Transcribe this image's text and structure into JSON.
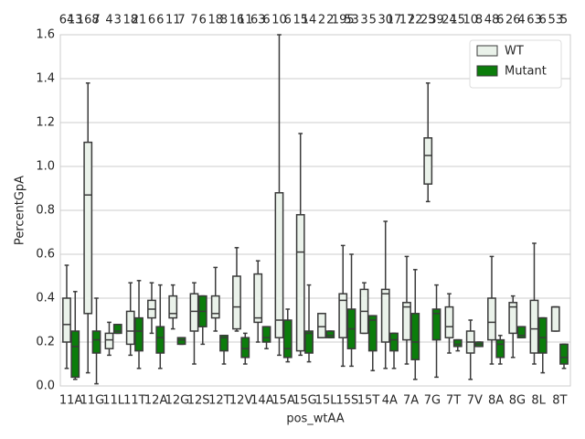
{
  "chart_data": {
    "type": "box",
    "xlabel": "pos_wtAA",
    "ylabel": "PercentGpA",
    "categories": [
      "11A",
      "11G",
      "11L",
      "11T",
      "12A",
      "12G",
      "12S",
      "12T",
      "12V",
      "14A",
      "15A",
      "15G",
      "15L",
      "15S",
      "15T",
      "4A",
      "7A",
      "7G",
      "7T",
      "7V",
      "8A",
      "8G",
      "8L",
      "8T"
    ],
    "ylim": [
      0,
      1.6
    ],
    "yticks": [
      {
        "value": 0,
        "label": "0.0"
      },
      {
        "value": 0.2,
        "label": "0.2"
      },
      {
        "value": 0.4,
        "label": "0.4"
      },
      {
        "value": 0.6,
        "label": "0.6"
      },
      {
        "value": 0.8,
        "label": "0.8"
      },
      {
        "value": 1,
        "label": "1.0"
      },
      {
        "value": 1.2,
        "label": "1.2"
      },
      {
        "value": 1.4,
        "label": "1.4"
      },
      {
        "value": 1.6,
        "label": "1.6"
      }
    ],
    "grid": true,
    "legend": "upper right",
    "series": [
      {
        "name": "WT",
        "color": "#eaf2ea",
        "stats": [
          [
            0.08,
            0.2,
            0.28,
            0.4,
            0.55
          ],
          [
            0.06,
            0.33,
            0.87,
            1.11,
            1.38
          ],
          [
            0.14,
            0.17,
            0.21,
            0.24,
            0.29
          ],
          [
            0.14,
            0.19,
            0.25,
            0.34,
            0.47
          ],
          [
            0.24,
            0.31,
            0.35,
            0.39,
            0.47
          ],
          [
            0.26,
            0.31,
            0.33,
            0.41,
            0.46
          ],
          [
            0.1,
            0.25,
            0.34,
            0.42,
            0.47
          ],
          [
            0.25,
            0.31,
            0.33,
            0.41,
            0.54
          ],
          [
            0.25,
            0.26,
            0.36,
            0.5,
            0.63
          ],
          [
            0.2,
            0.29,
            0.31,
            0.51,
            0.57
          ],
          [
            0.14,
            0.22,
            0.3,
            0.88,
            1.6
          ],
          [
            0.14,
            0.16,
            0.61,
            0.78,
            1.15
          ],
          [
            0.22,
            0.22,
            0.27,
            0.33,
            0.33
          ],
          [
            0.09,
            0.22,
            0.39,
            0.42,
            0.64
          ],
          [
            0.24,
            0.24,
            0.34,
            0.44,
            0.47
          ],
          [
            0.08,
            0.2,
            0.42,
            0.44,
            0.75
          ],
          [
            0.1,
            0.21,
            0.36,
            0.38,
            0.59
          ],
          [
            0.84,
            0.92,
            1.05,
            1.13,
            1.38
          ],
          [
            0.15,
            0.22,
            0.27,
            0.36,
            0.42
          ],
          [
            0.03,
            0.15,
            0.2,
            0.25,
            0.3
          ],
          [
            0.1,
            0.21,
            0.29,
            0.4,
            0.59
          ],
          [
            0.13,
            0.24,
            0.36,
            0.38,
            0.41
          ],
          [
            0.1,
            0.15,
            0.26,
            0.39,
            0.65
          ],
          [
            0.25,
            0.25,
            0.36,
            0.36,
            0.36
          ]
        ],
        "counts": [
          64,
          168,
          4,
          18,
          6,
          11,
          7,
          18,
          16,
          63,
          10,
          15,
          2,
          195,
          3,
          30,
          17,
          25,
          24,
          10,
          48,
          26,
          63,
          53
        ]
      },
      {
        "name": "Mutant",
        "color": "#0b7d0b",
        "stats": [
          [
            0.03,
            0.04,
            0.18,
            0.25,
            0.43
          ],
          [
            0.01,
            0.15,
            0.21,
            0.25,
            0.4
          ],
          [
            0.24,
            0.24,
            0.25,
            0.28,
            0.28
          ],
          [
            0.08,
            0.16,
            0.25,
            0.31,
            0.48
          ],
          [
            0.08,
            0.15,
            0.22,
            0.27,
            0.46
          ],
          [
            0.19,
            0.19,
            0.21,
            0.22,
            0.22
          ],
          [
            0.19,
            0.27,
            0.34,
            0.41,
            0.41
          ],
          [
            0.1,
            0.16,
            0.22,
            0.23,
            0.23
          ],
          [
            0.1,
            0.13,
            0.17,
            0.22,
            0.24
          ],
          [
            0.17,
            0.2,
            0.22,
            0.27,
            0.27
          ],
          [
            0.11,
            0.13,
            0.17,
            0.3,
            0.35
          ],
          [
            0.11,
            0.15,
            0.24,
            0.25,
            0.46
          ],
          [
            0.22,
            0.22,
            0.23,
            0.25,
            0.25
          ],
          [
            0.09,
            0.17,
            0.26,
            0.35,
            0.6
          ],
          [
            0.07,
            0.16,
            0.3,
            0.32,
            0.32
          ],
          [
            0.08,
            0.16,
            0.21,
            0.24,
            0.24
          ],
          [
            0.03,
            0.12,
            0.2,
            0.33,
            0.53
          ],
          [
            0.04,
            0.21,
            0.33,
            0.35,
            0.46
          ],
          [
            0.16,
            0.18,
            0.19,
            0.21,
            0.21
          ],
          [
            0.18,
            0.18,
            0.19,
            0.2,
            0.2
          ],
          [
            0.1,
            0.13,
            0.19,
            0.21,
            0.23
          ],
          [
            0.22,
            0.22,
            0.23,
            0.27,
            0.27
          ],
          [
            0.06,
            0.15,
            0.22,
            0.31,
            0.31
          ],
          [
            0.08,
            0.1,
            0.13,
            0.19,
            0.19
          ]
        ],
        "counts": [
          13,
          7,
          3,
          21,
          6,
          7,
          6,
          8,
          11,
          6,
          6,
          14,
          2,
          53,
          5,
          17,
          22,
          39,
          15,
          8,
          6,
          4,
          6,
          5
        ]
      }
    ]
  }
}
